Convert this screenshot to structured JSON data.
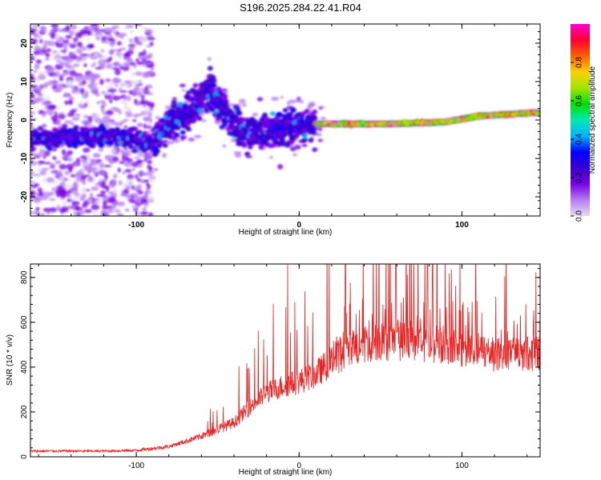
{
  "title": "S196.2025.284.22.41.R04",
  "chart_data": [
    {
      "type": "heatmap",
      "xlabel": "Height of straight line (km)",
      "ylabel": "Frequency (Hz)",
      "xlim": [
        -165,
        148
      ],
      "ylim": [
        -25,
        25
      ],
      "x_ticks": [
        -100,
        0,
        100
      ],
      "y_ticks": [
        -20,
        -10,
        0,
        10,
        20
      ],
      "colorbar": {
        "label": "Normalized spectral amplitude",
        "ticks": [
          0.0,
          0.2,
          0.4,
          0.6,
          0.8
        ],
        "range": [
          0,
          1
        ],
        "colormap": [
          "#e6d9f5",
          "#b57ef0",
          "#7a00e6",
          "#3a00d0",
          "#0000ff",
          "#00b4ff",
          "#00e8b0",
          "#00e000",
          "#a0e600",
          "#ffd000",
          "#ff6000",
          "#ff0033",
          "#ff00cc"
        ]
      },
      "ridge_centerline": [
        {
          "x": -165,
          "f": -5
        },
        {
          "x": -140,
          "f": -4.5
        },
        {
          "x": -110,
          "f": -4
        },
        {
          "x": -90,
          "f": -6
        },
        {
          "x": -80,
          "f": -1
        },
        {
          "x": -65,
          "f": 3
        },
        {
          "x": -55,
          "f": 8
        },
        {
          "x": -45,
          "f": 2
        },
        {
          "x": -35,
          "f": -3
        },
        {
          "x": -20,
          "f": -3
        },
        {
          "x": 0,
          "f": -1
        },
        {
          "x": 20,
          "f": -1
        },
        {
          "x": 60,
          "f": -1
        },
        {
          "x": 90,
          "f": -0.5
        },
        {
          "x": 110,
          "f": 1
        },
        {
          "x": 148,
          "f": 2
        }
      ]
    },
    {
      "type": "line",
      "xlabel": "Height of straight line (km)",
      "ylabel": "SNR (10 * v/v)",
      "xlim": [
        -165,
        148
      ],
      "ylim": [
        0,
        860
      ],
      "x_ticks": [
        -100,
        0,
        100
      ],
      "y_ticks": [
        0,
        200,
        400,
        600,
        800
      ],
      "color": "#ee2222",
      "series_trend": [
        {
          "x": -165,
          "y": 25
        },
        {
          "x": -120,
          "y": 25
        },
        {
          "x": -100,
          "y": 28
        },
        {
          "x": -80,
          "y": 45
        },
        {
          "x": -60,
          "y": 90
        },
        {
          "x": -40,
          "y": 150
        },
        {
          "x": -30,
          "y": 220
        },
        {
          "x": -20,
          "y": 280
        },
        {
          "x": -10,
          "y": 310
        },
        {
          "x": 0,
          "y": 330
        },
        {
          "x": 10,
          "y": 360
        },
        {
          "x": 20,
          "y": 420
        },
        {
          "x": 30,
          "y": 470
        },
        {
          "x": 45,
          "y": 500
        },
        {
          "x": 60,
          "y": 505
        },
        {
          "x": 80,
          "y": 500
        },
        {
          "x": 100,
          "y": 470
        },
        {
          "x": 120,
          "y": 450
        },
        {
          "x": 148,
          "y": 450
        }
      ],
      "peak": {
        "x": -7,
        "y": 860
      }
    }
  ]
}
